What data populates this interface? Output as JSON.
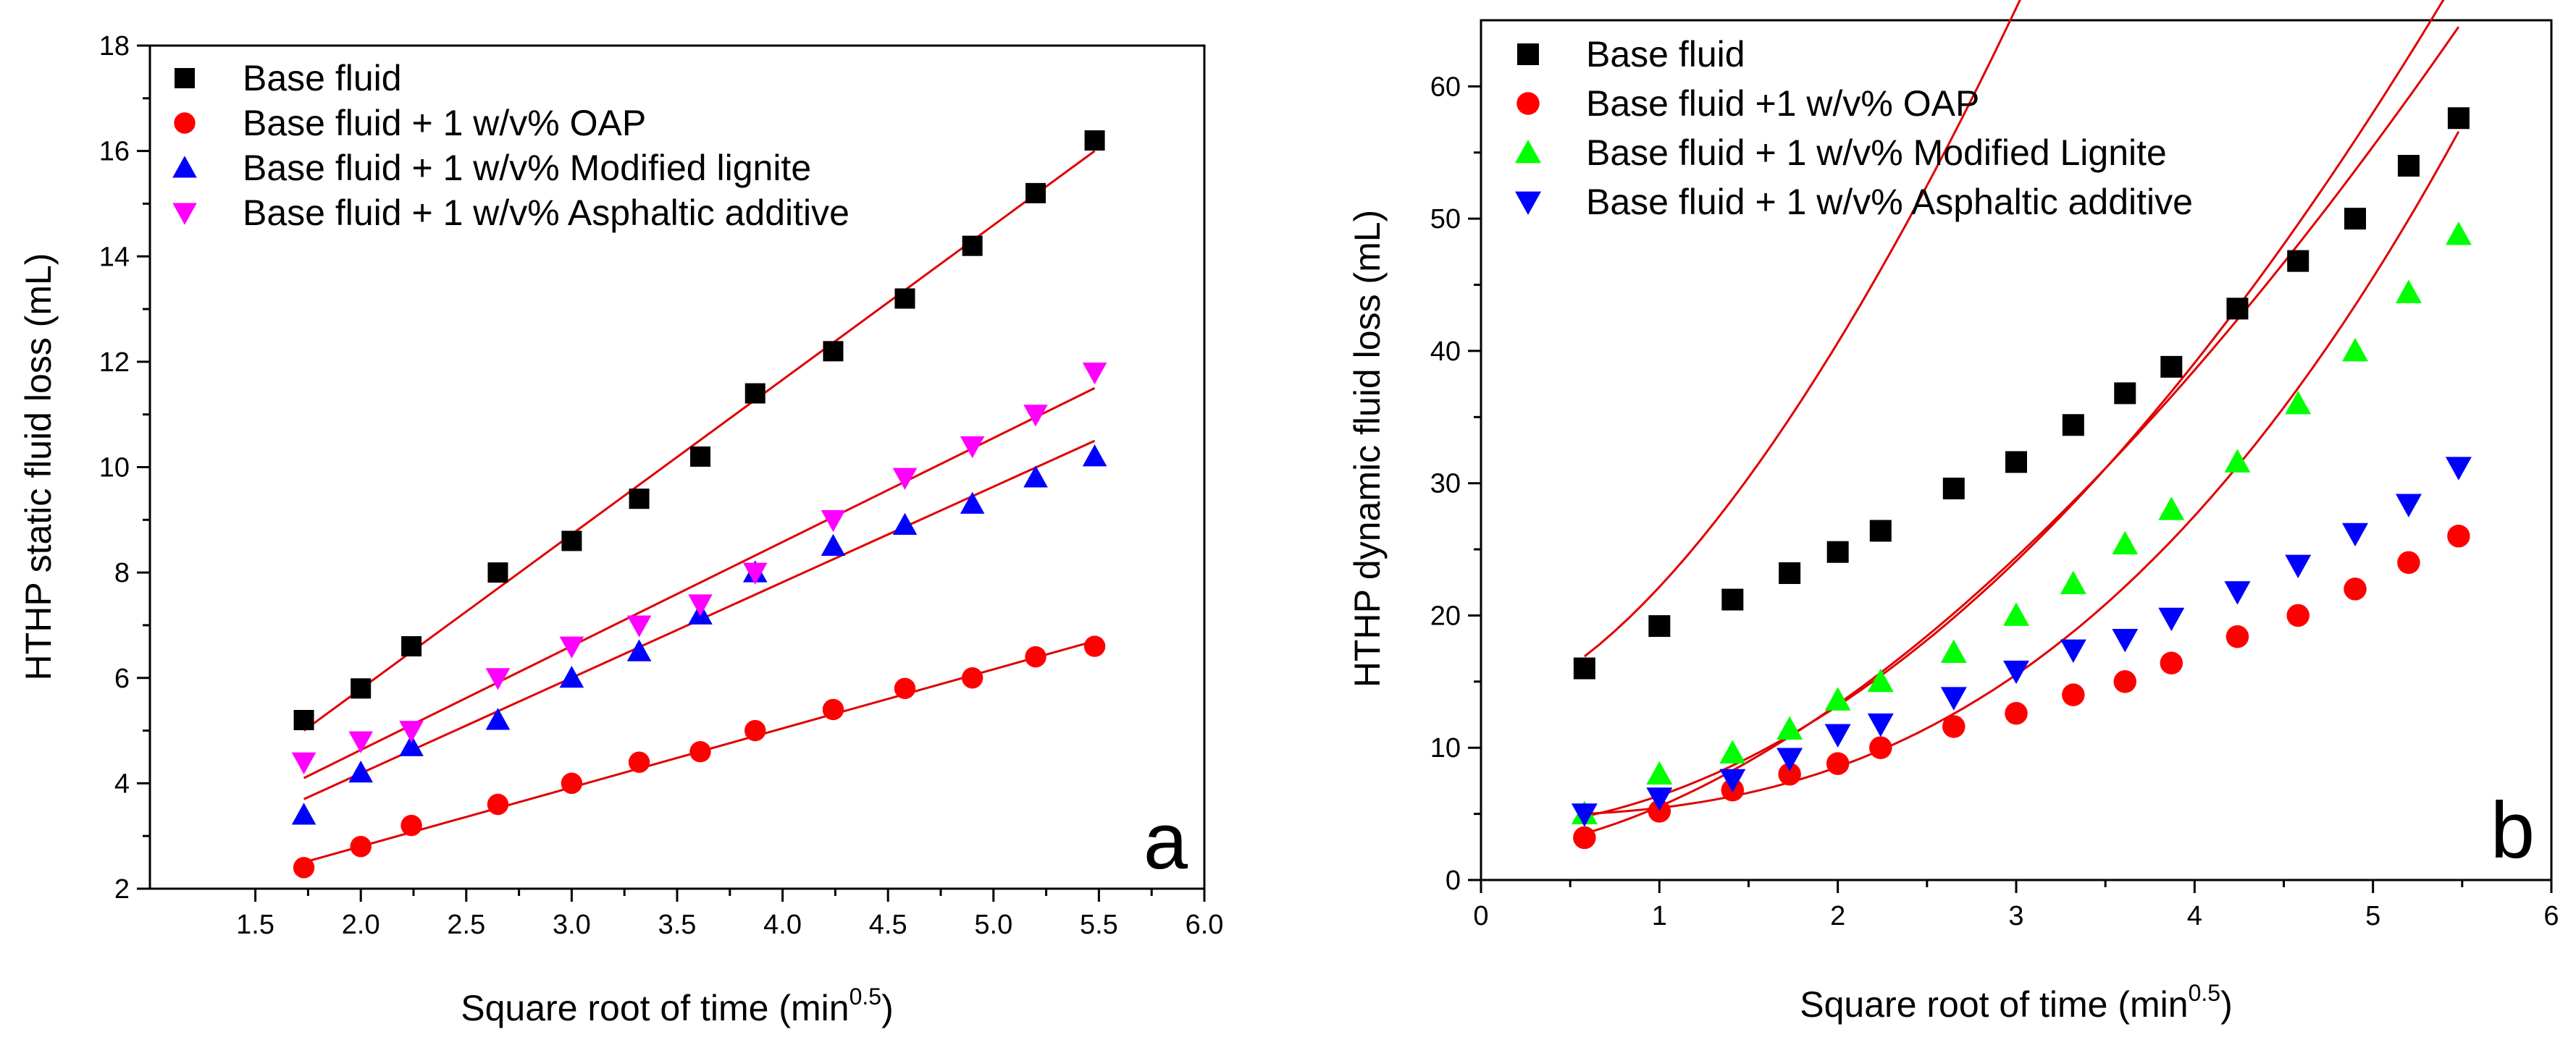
{
  "chart_data": [
    {
      "type": "scatter",
      "panel_label": "a",
      "xlabel": "Square root of time (min",
      "xlabel_sup": "0.5",
      "xlabel_end": ")",
      "ylabel": "HTHP static fluid loss (mL)",
      "xlim": [
        1.0,
        6.0
      ],
      "ylim": [
        2,
        18
      ],
      "xticks": [
        "1.5",
        "2.0",
        "2.5",
        "3.0",
        "3.5",
        "4.0",
        "4.5",
        "5.0",
        "5.5",
        "6.0"
      ],
      "yticks": [
        "2",
        "4",
        "6",
        "8",
        "10",
        "12",
        "14",
        "16",
        "18"
      ],
      "grid": false,
      "legend_position": "top-left",
      "x": [
        1.73,
        2.0,
        2.24,
        2.65,
        3.0,
        3.32,
        3.61,
        3.87,
        4.24,
        4.58,
        4.9,
        5.2,
        5.48
      ],
      "series": [
        {
          "name": "Base fluid",
          "marker": "square",
          "color": "#000000",
          "values": [
            5.2,
            5.8,
            6.6,
            8.0,
            8.6,
            9.4,
            10.2,
            11.4,
            12.2,
            13.2,
            14.2,
            15.2,
            16.2
          ],
          "fit": [
            1.73,
            5.0,
            5.48,
            16.0
          ]
        },
        {
          "name": "Base fluid + 1 w/v% OAP",
          "marker": "circle",
          "color": "#ff0000",
          "values": [
            2.4,
            2.8,
            3.2,
            3.6,
            4.0,
            4.4,
            4.6,
            5.0,
            5.4,
            5.8,
            6.0,
            6.4,
            6.6
          ],
          "fit": [
            1.73,
            2.5,
            5.48,
            6.7
          ]
        },
        {
          "name": "Base fluid + 1 w/v% Modified lignite",
          "marker": "triangle-up",
          "color": "#0000ff",
          "values": [
            3.4,
            4.2,
            4.7,
            5.2,
            6.0,
            6.5,
            7.2,
            8.0,
            8.5,
            8.9,
            9.3,
            9.8,
            10.2
          ],
          "fit": [
            1.73,
            3.7,
            5.48,
            10.5
          ]
        },
        {
          "name": "Base fluid + 1 w/v% Asphaltic additive",
          "marker": "triangle-down",
          "color": "#ff00ff",
          "values": [
            4.4,
            4.8,
            5.0,
            6.0,
            6.6,
            7.0,
            7.4,
            8.0,
            9.0,
            9.8,
            10.4,
            11.0,
            11.8
          ],
          "fit": [
            1.73,
            4.1,
            5.48,
            11.5
          ]
        }
      ]
    },
    {
      "type": "scatter",
      "panel_label": "b",
      "xlabel": "Square root of time (min",
      "xlabel_sup": "0.5",
      "xlabel_end": ")",
      "ylabel": "HTHP dynamic fluid loss (mL)",
      "xlim": [
        0,
        6
      ],
      "ylim": [
        0,
        65
      ],
      "xticks": [
        "0",
        "1",
        "2",
        "3",
        "4",
        "5",
        "6"
      ],
      "yticks": [
        "0",
        "10",
        "20",
        "30",
        "40",
        "50",
        "60"
      ],
      "grid": false,
      "legend_position": "top-left",
      "x": [
        0.58,
        1.0,
        1.41,
        1.73,
        2.0,
        2.24,
        2.65,
        3.0,
        3.32,
        3.61,
        3.87,
        4.24,
        4.58,
        4.9,
        5.2,
        5.48
      ],
      "series": [
        {
          "name": "Base fluid",
          "marker": "square",
          "color": "#000000",
          "values": [
            16.0,
            19.2,
            21.2,
            23.2,
            24.8,
            26.4,
            29.6,
            31.6,
            34.4,
            36.8,
            38.8,
            43.2,
            46.8,
            50.0,
            54.0,
            57.6
          ],
          "fit": [
            16.9,
            9.0,
            1.61
          ]
        },
        {
          "name": "Base fluid +1 w/v% OAP",
          "marker": "circle",
          "color": "#ff0000",
          "values": [
            3.2,
            5.2,
            6.8,
            8.0,
            8.8,
            10.0,
            11.6,
            12.6,
            14.0,
            15.0,
            16.4,
            18.4,
            20.0,
            22.0,
            24.0,
            26.0
          ],
          "fit": [
            3.5,
            3.4,
            1.71
          ]
        },
        {
          "name": "Base fluid + 1 w/v% Modified Lignite",
          "marker": "triangle-up",
          "color": "#00ff00",
          "values": [
            5.0,
            8.0,
            9.6,
            11.4,
            13.6,
            15.0,
            17.2,
            20.0,
            22.4,
            25.4,
            28.0,
            31.6,
            36.0,
            40.0,
            44.4,
            48.8
          ],
          "fit": [
            5.0,
            0.6,
            2.62
          ]
        },
        {
          "name": "Base fluid + 1 w/v% Asphaltic additive",
          "marker": "triangle-down",
          "color": "#0000ff",
          "values": [
            5.0,
            6.2,
            7.6,
            9.2,
            11.0,
            11.8,
            13.8,
            15.8,
            17.4,
            18.2,
            19.8,
            21.8,
            23.8,
            26.2,
            28.4,
            31.2
          ],
          "fit": [
            4.8,
            2.42,
            1.93
          ]
        }
      ]
    }
  ]
}
